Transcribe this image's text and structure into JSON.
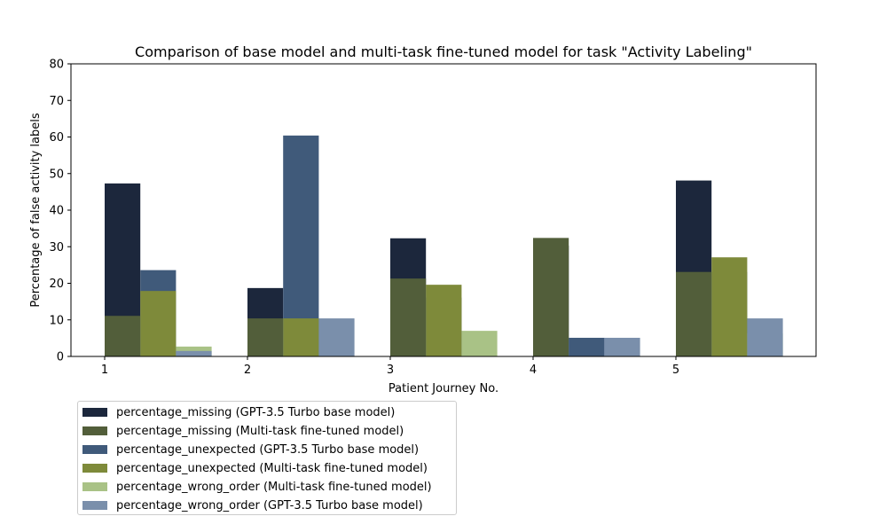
{
  "chart_data": {
    "type": "bar",
    "title": "Comparison of base model and multi-task fine-tuned model for task \"Activity Labeling\"",
    "xlabel": "Patient Journey No.",
    "ylabel": "Percentage of false activity labels",
    "x_ticks": [
      "1",
      "2",
      "3",
      "4",
      "5"
    ],
    "ylim": [
      0,
      80
    ],
    "y_ticks": [
      "0",
      "10",
      "20",
      "30",
      "40",
      "50",
      "60",
      "70",
      "80"
    ],
    "grid": false,
    "legend_position": "below-left",
    "categories": [
      "1",
      "2",
      "3",
      "4",
      "5"
    ],
    "series": [
      {
        "name": "percentage_missing (GPT-3.5 Turbo base model)",
        "color": "#1c273c",
        "values": [
          47.3,
          18.7,
          32.3,
          30.3,
          48.1
        ]
      },
      {
        "name": "percentage_missing (Multi-task fine-tuned model)",
        "color": "#525e3a",
        "values": [
          11.1,
          10.4,
          21.3,
          32.4,
          23.1
        ]
      },
      {
        "name": "percentage_unexpected (GPT-3.5 Turbo base model)",
        "color": "#405a7a",
        "values": [
          23.6,
          60.4,
          16.1,
          5.1,
          23.1
        ]
      },
      {
        "name": "percentage_unexpected (Multi-task fine-tuned model)",
        "color": "#7e8a3a",
        "values": [
          17.9,
          10.4,
          19.6,
          0,
          27.1
        ]
      },
      {
        "name": "percentage_wrong_order (Multi-task fine-tuned model)",
        "color": "#a9c286",
        "values": [
          2.7,
          0,
          7.0,
          0,
          6.3
        ]
      },
      {
        "name": "percentage_wrong_order (GPT-3.5 Turbo base model)",
        "color": "#7a8fab",
        "values": [
          1.5,
          10.4,
          0,
          5.1,
          10.4
        ]
      }
    ]
  }
}
